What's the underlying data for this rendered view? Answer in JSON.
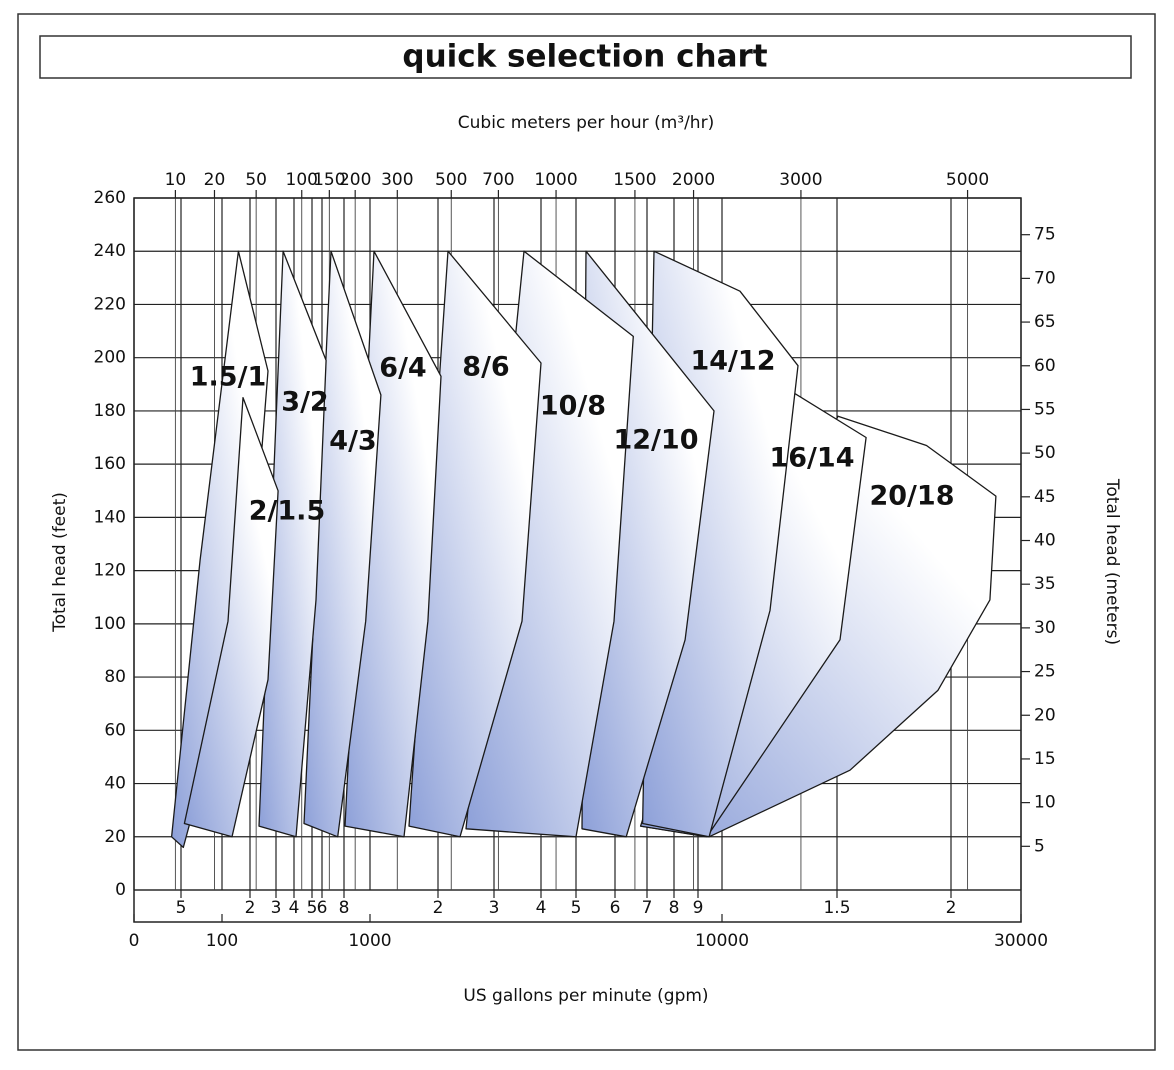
{
  "chart_data": {
    "type": "area",
    "title": "quick selection chart",
    "x_title": "US gallons per minute (gpm)",
    "x2_title": "Cubic meters per hour (m³/hr)",
    "y_title": "Total head (feet)",
    "y2_title": "Total head (meters)",
    "xlim": [
      0,
      30000
    ],
    "xticks": [
      0,
      {
        "value": 50,
        "label": "5"
      },
      100,
      {
        "value": 200,
        "label": "2"
      },
      {
        "value": 300,
        "label": "3"
      },
      {
        "value": 400,
        "label": "4"
      },
      {
        "value": 500,
        "label": "5"
      },
      {
        "value": 600,
        "label": "6"
      },
      {
        "value": 800,
        "label": "8"
      },
      1000,
      {
        "value": 2000,
        "label": "2"
      },
      {
        "value": 3000,
        "label": "3"
      },
      {
        "value": 4000,
        "label": "4"
      },
      {
        "value": 5000,
        "label": "5"
      },
      {
        "value": 6000,
        "label": "6"
      },
      {
        "value": 7000,
        "label": "7"
      },
      {
        "value": 8000,
        "label": "8"
      },
      {
        "value": 9000,
        "label": "9"
      },
      10000,
      {
        "value": 15000,
        "label": "1.5"
      },
      {
        "value": 20000,
        "label": "2"
      },
      30000
    ],
    "x2ticks": [
      10,
      20,
      50,
      100,
      150,
      200,
      300,
      500,
      700,
      1000,
      1500,
      2000,
      3000,
      5000
    ],
    "ylim": [
      0,
      260
    ],
    "yticks": [
      0,
      20,
      40,
      60,
      80,
      100,
      120,
      140,
      160,
      180,
      200,
      220,
      240,
      260
    ],
    "y2lim": [
      0,
      79.2
    ],
    "y2ticks": [
      5,
      10,
      15,
      20,
      25,
      30,
      35,
      40,
      45,
      50,
      55,
      60,
      65,
      70,
      75
    ],
    "grid": true,
    "color": "#8c9fd8",
    "series": [
      {
        "name": "2/1.5",
        "x": [
          168,
          310,
          265,
          128,
          53,
          116
        ],
        "values": [
          185,
          150,
          79,
          20,
          25,
          101
        ]
      },
      {
        "name": "1.5/1",
        "x": [
          150,
          265,
          200,
          52,
          40,
          69
        ],
        "values": [
          240,
          195,
          109,
          16,
          20,
          124
        ]
      },
      {
        "name": "3/2",
        "x": [
          336,
          633,
          538,
          410,
          230
        ],
        "values": [
          240,
          199,
          109,
          20,
          24
        ]
      },
      {
        "name": "4/3",
        "x": [
          675,
          1118,
          964,
          737,
          453
        ],
        "values": [
          240,
          186,
          101,
          20,
          25
        ]
      },
      {
        "name": "6/4",
        "x": [
          1042,
          2044,
          1805,
          1414,
          807
        ],
        "values": [
          240,
          193,
          101,
          20,
          24
        ]
      },
      {
        "name": "8/6",
        "x": [
          2150,
          4000,
          3561,
          2345,
          1488
        ],
        "values": [
          240,
          198,
          101,
          20,
          24
        ]
      },
      {
        "name": "10/8",
        "x": [
          3604,
          6554,
          5973,
          5000,
          2449
        ],
        "values": [
          240,
          208,
          101,
          20,
          23
        ]
      },
      {
        "name": "12/10",
        "x": [
          5240,
          9655,
          8448,
          6332,
          5143
        ],
        "values": [
          240,
          180,
          94,
          20,
          23
        ]
      },
      {
        "name": "14/12",
        "x": [
          7246,
          10656,
          13071,
          11842,
          9450,
          6854
        ],
        "values": [
          240,
          225,
          197,
          105,
          20,
          25
        ]
      },
      {
        "name": "16/14",
        "x": [
          12265,
          16144,
          15113,
          9357,
          6786
        ],
        "values": [
          190,
          170,
          94,
          20,
          24
        ]
      },
      {
        "name": "20/18",
        "x": [
          15038,
          18803,
          25948,
          25049,
          19350,
          15500,
          9450,
          6786
        ],
        "values": [
          178,
          167,
          148,
          109,
          75,
          45,
          20,
          24
        ]
      }
    ]
  }
}
